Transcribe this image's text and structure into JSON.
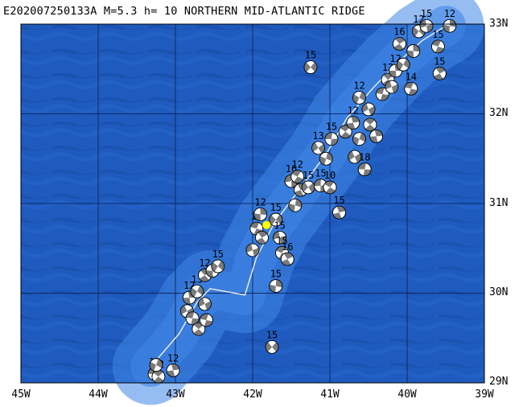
{
  "title": "E202007250133A M=5.3 h= 10 NORTHERN MID-ATLANTIC RIDGE",
  "colors": {
    "ocean_deep": "#1e56b8",
    "ocean_mid": "#2e6ed0",
    "ridge_shallow": "#3f86e6",
    "grid": "#0d2a66",
    "plate_boundary": "#e8e8e8",
    "main_event": "#ffff00",
    "beachball_dark": "#7a7a7a",
    "beachball_light": "#ffffff"
  },
  "lat_labels": [
    "33N",
    "32N",
    "31N",
    "30N",
    "29N"
  ],
  "lon_labels": [
    "45W",
    "44W",
    "43W",
    "42W",
    "41W",
    "40W",
    "39W"
  ],
  "map_extent": {
    "lon_min": -45,
    "lon_max": -39,
    "lat_min": 29,
    "lat_max": 33
  },
  "main_event": {
    "lon": -41.82,
    "lat": 30.76,
    "icon": "star-icon"
  },
  "plate_boundary": [
    [
      -43.32,
      29.18
    ],
    [
      -43.15,
      29.35
    ],
    [
      -42.95,
      29.55
    ],
    [
      -42.72,
      29.9
    ],
    [
      -42.55,
      30.05
    ],
    [
      -42.1,
      29.98
    ],
    [
      -41.95,
      30.4
    ],
    [
      -41.72,
      30.78
    ],
    [
      -41.4,
      31.15
    ],
    [
      -41.05,
      31.55
    ],
    [
      -40.78,
      31.95
    ],
    [
      -40.45,
      32.28
    ],
    [
      -40.15,
      32.55
    ],
    [
      -39.8,
      32.82
    ],
    [
      -39.5,
      32.98
    ]
  ],
  "beachballs": [
    {
      "lon": -43.27,
      "lat": 29.1,
      "depth": "12"
    },
    {
      "lon": -43.22,
      "lat": 29.07,
      "depth": "12"
    },
    {
      "lon": -43.03,
      "lat": 29.14,
      "depth": "12"
    },
    {
      "lon": -43.25,
      "lat": 29.2,
      "depth": ""
    },
    {
      "lon": -42.85,
      "lat": 29.8,
      "depth": ""
    },
    {
      "lon": -42.78,
      "lat": 29.72,
      "depth": ""
    },
    {
      "lon": -42.7,
      "lat": 29.6,
      "depth": ""
    },
    {
      "lon": -42.82,
      "lat": 29.95,
      "depth": "12"
    },
    {
      "lon": -42.72,
      "lat": 30.02,
      "depth": "13"
    },
    {
      "lon": -42.62,
      "lat": 29.88,
      "depth": ""
    },
    {
      "lon": -42.6,
      "lat": 29.7,
      "depth": ""
    },
    {
      "lon": -42.62,
      "lat": 30.2,
      "depth": "12"
    },
    {
      "lon": -42.52,
      "lat": 30.25,
      "depth": ""
    },
    {
      "lon": -42.45,
      "lat": 30.3,
      "depth": "15"
    },
    {
      "lon": -42.0,
      "lat": 30.48,
      "depth": ""
    },
    {
      "lon": -41.95,
      "lat": 30.72,
      "depth": "12"
    },
    {
      "lon": -41.88,
      "lat": 30.62,
      "depth": ""
    },
    {
      "lon": -41.9,
      "lat": 30.88,
      "depth": "12"
    },
    {
      "lon": -41.7,
      "lat": 30.82,
      "depth": "15"
    },
    {
      "lon": -41.65,
      "lat": 30.62,
      "depth": "15"
    },
    {
      "lon": -41.62,
      "lat": 30.45,
      "depth": "15"
    },
    {
      "lon": -41.55,
      "lat": 30.38,
      "depth": "16"
    },
    {
      "lon": -41.7,
      "lat": 30.08,
      "depth": "15"
    },
    {
      "lon": -41.75,
      "lat": 29.4,
      "depth": "15"
    },
    {
      "lon": -41.5,
      "lat": 31.25,
      "depth": "16"
    },
    {
      "lon": -41.42,
      "lat": 31.3,
      "depth": "12"
    },
    {
      "lon": -41.38,
      "lat": 31.15,
      "depth": ""
    },
    {
      "lon": -41.45,
      "lat": 30.98,
      "depth": ""
    },
    {
      "lon": -41.28,
      "lat": 31.18,
      "depth": "15"
    },
    {
      "lon": -41.12,
      "lat": 31.2,
      "depth": "15"
    },
    {
      "lon": -41.0,
      "lat": 31.18,
      "depth": "10"
    },
    {
      "lon": -40.88,
      "lat": 30.9,
      "depth": "15"
    },
    {
      "lon": -41.05,
      "lat": 31.5,
      "depth": ""
    },
    {
      "lon": -41.15,
      "lat": 31.62,
      "depth": "13"
    },
    {
      "lon": -40.98,
      "lat": 31.72,
      "depth": "15"
    },
    {
      "lon": -40.8,
      "lat": 31.8,
      "depth": ""
    },
    {
      "lon": -40.7,
      "lat": 31.9,
      "depth": "12"
    },
    {
      "lon": -40.62,
      "lat": 31.72,
      "depth": ""
    },
    {
      "lon": -40.68,
      "lat": 31.52,
      "depth": ""
    },
    {
      "lon": -40.55,
      "lat": 31.38,
      "depth": "18"
    },
    {
      "lon": -40.48,
      "lat": 31.88,
      "depth": "17"
    },
    {
      "lon": -40.4,
      "lat": 31.75,
      "depth": ""
    },
    {
      "lon": -40.62,
      "lat": 32.18,
      "depth": "12"
    },
    {
      "lon": -40.5,
      "lat": 32.05,
      "depth": ""
    },
    {
      "lon": -40.32,
      "lat": 32.22,
      "depth": ""
    },
    {
      "lon": -40.25,
      "lat": 32.38,
      "depth": "12"
    },
    {
      "lon": -40.15,
      "lat": 32.48,
      "depth": "12"
    },
    {
      "lon": -40.05,
      "lat": 32.55,
      "depth": ""
    },
    {
      "lon": -40.2,
      "lat": 32.3,
      "depth": ""
    },
    {
      "lon": -39.95,
      "lat": 32.28,
      "depth": "14"
    },
    {
      "lon": -40.1,
      "lat": 32.78,
      "depth": "16"
    },
    {
      "lon": -39.92,
      "lat": 32.7,
      "depth": ""
    },
    {
      "lon": -39.85,
      "lat": 32.92,
      "depth": "12"
    },
    {
      "lon": -39.75,
      "lat": 32.98,
      "depth": "15"
    },
    {
      "lon": -39.6,
      "lat": 32.75,
      "depth": "15"
    },
    {
      "lon": -39.58,
      "lat": 32.45,
      "depth": "15"
    },
    {
      "lon": -39.45,
      "lat": 32.98,
      "depth": "12"
    },
    {
      "lon": -41.25,
      "lat": 32.52,
      "depth": "15"
    }
  ]
}
